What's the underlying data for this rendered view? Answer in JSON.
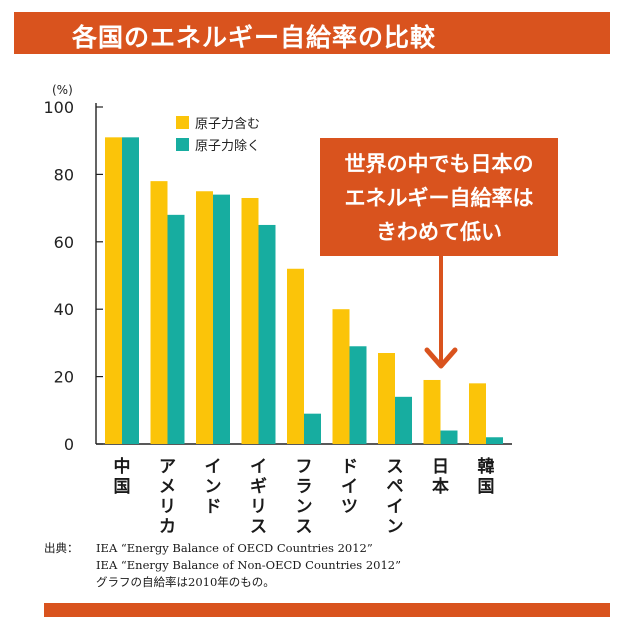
{
  "header": {
    "title": "各国のエネルギー自給率の比較"
  },
  "callout": {
    "lines": [
      "世界の中でも日本の",
      "エネルギー自給率は",
      "きわめて低い"
    ]
  },
  "source": {
    "label": "出典：",
    "lines": [
      "IEA “Energy Balance of OECD Countries 2012”",
      "IEA “Energy Balance of Non-OECD Countries 2012”",
      "グラフの自給率は2010年のもの。"
    ]
  },
  "colors": {
    "accent": "#d9531e",
    "nuclear_incl": "#fbc409",
    "nuclear_excl": "#17ada0"
  },
  "chart_data": {
    "type": "bar",
    "title": "",
    "ylabel": "(%)",
    "xlabel": "",
    "ylim": [
      0,
      100
    ],
    "yticks": [
      0,
      20,
      40,
      60,
      80,
      100
    ],
    "grid": false,
    "legend_position": "top-left",
    "categories": [
      "中国",
      "アメリカ",
      "インド",
      "イギリス",
      "フランス",
      "ドイツ",
      "スペイン",
      "日本",
      "韓国"
    ],
    "series": [
      {
        "name": "原子力含む",
        "color": "#fbc409",
        "values": [
          91,
          78,
          75,
          73,
          52,
          40,
          27,
          19,
          18
        ]
      },
      {
        "name": "原子力除く",
        "color": "#17ada0",
        "values": [
          91,
          68,
          74,
          65,
          9,
          29,
          14,
          4,
          2
        ]
      }
    ]
  }
}
